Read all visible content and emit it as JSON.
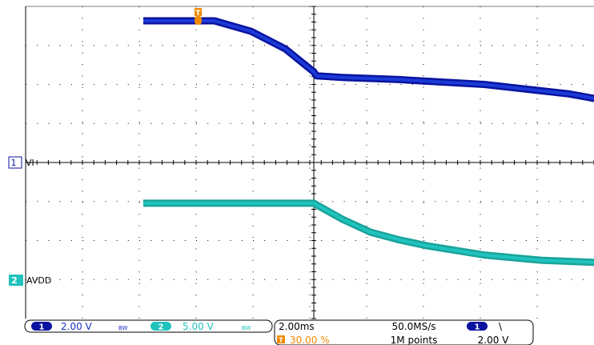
{
  "colors": {
    "ch1": "#0a13a0",
    "ch1_fill": "#1b3bd6",
    "ch2": "#1aa39b",
    "ch2_fill": "#20c3bd",
    "trigger": "#f08a00",
    "grid": "#000000",
    "text": "#000000"
  },
  "trigger_marker": {
    "label": "T"
  },
  "channels": [
    {
      "number": "1",
      "label": "VI"
    },
    {
      "number": "2",
      "label": "AVDD"
    }
  ],
  "status_bar": {
    "ch1_scale": "2.00 V",
    "ch1_bw": "BW",
    "ch2_scale": "5.00 V",
    "ch2_bw": "BW",
    "timebase": "2.00ms",
    "trigger_position": "30.00 %",
    "sample_rate": "50.0MS/s",
    "record_length": "1M points",
    "trigger_channel": "1",
    "trigger_slope": "\\",
    "trigger_level": "2.00 V"
  },
  "chart_data": {
    "type": "line",
    "title": "",
    "xlabel": "",
    "ylabel": "",
    "x_divisions": 10,
    "y_divisions": 8,
    "time_per_div_ms": 2.0,
    "xlim_ms": [
      -6.0,
      14.0
    ],
    "grid": true,
    "series": [
      {
        "name": "VI",
        "volts_per_div": 2.0,
        "x_ms": [
          -6.0,
          -3.5,
          -2.2,
          -1.0,
          0.0,
          0.1,
          1.0,
          3.0,
          6.0,
          9.0,
          12.0,
          14.0
        ],
        "y_V": [
          7.26,
          7.26,
          6.72,
          5.82,
          4.64,
          4.44,
          4.36,
          4.25,
          4.0,
          3.51,
          2.72,
          2.35
        ]
      },
      {
        "name": "AVDD",
        "volts_per_div": 5.0,
        "x_ms": [
          -6.0,
          -2.0,
          -0.1,
          0.0,
          0.5,
          1.0,
          2.0,
          3.0,
          4.0,
          6.0,
          8.0,
          10.0,
          14.0
        ],
        "y_V": [
          9.86,
          9.86,
          9.86,
          9.86,
          8.83,
          7.82,
          6.14,
          5.17,
          4.39,
          3.22,
          2.55,
          2.27,
          2.0
        ]
      }
    ]
  }
}
